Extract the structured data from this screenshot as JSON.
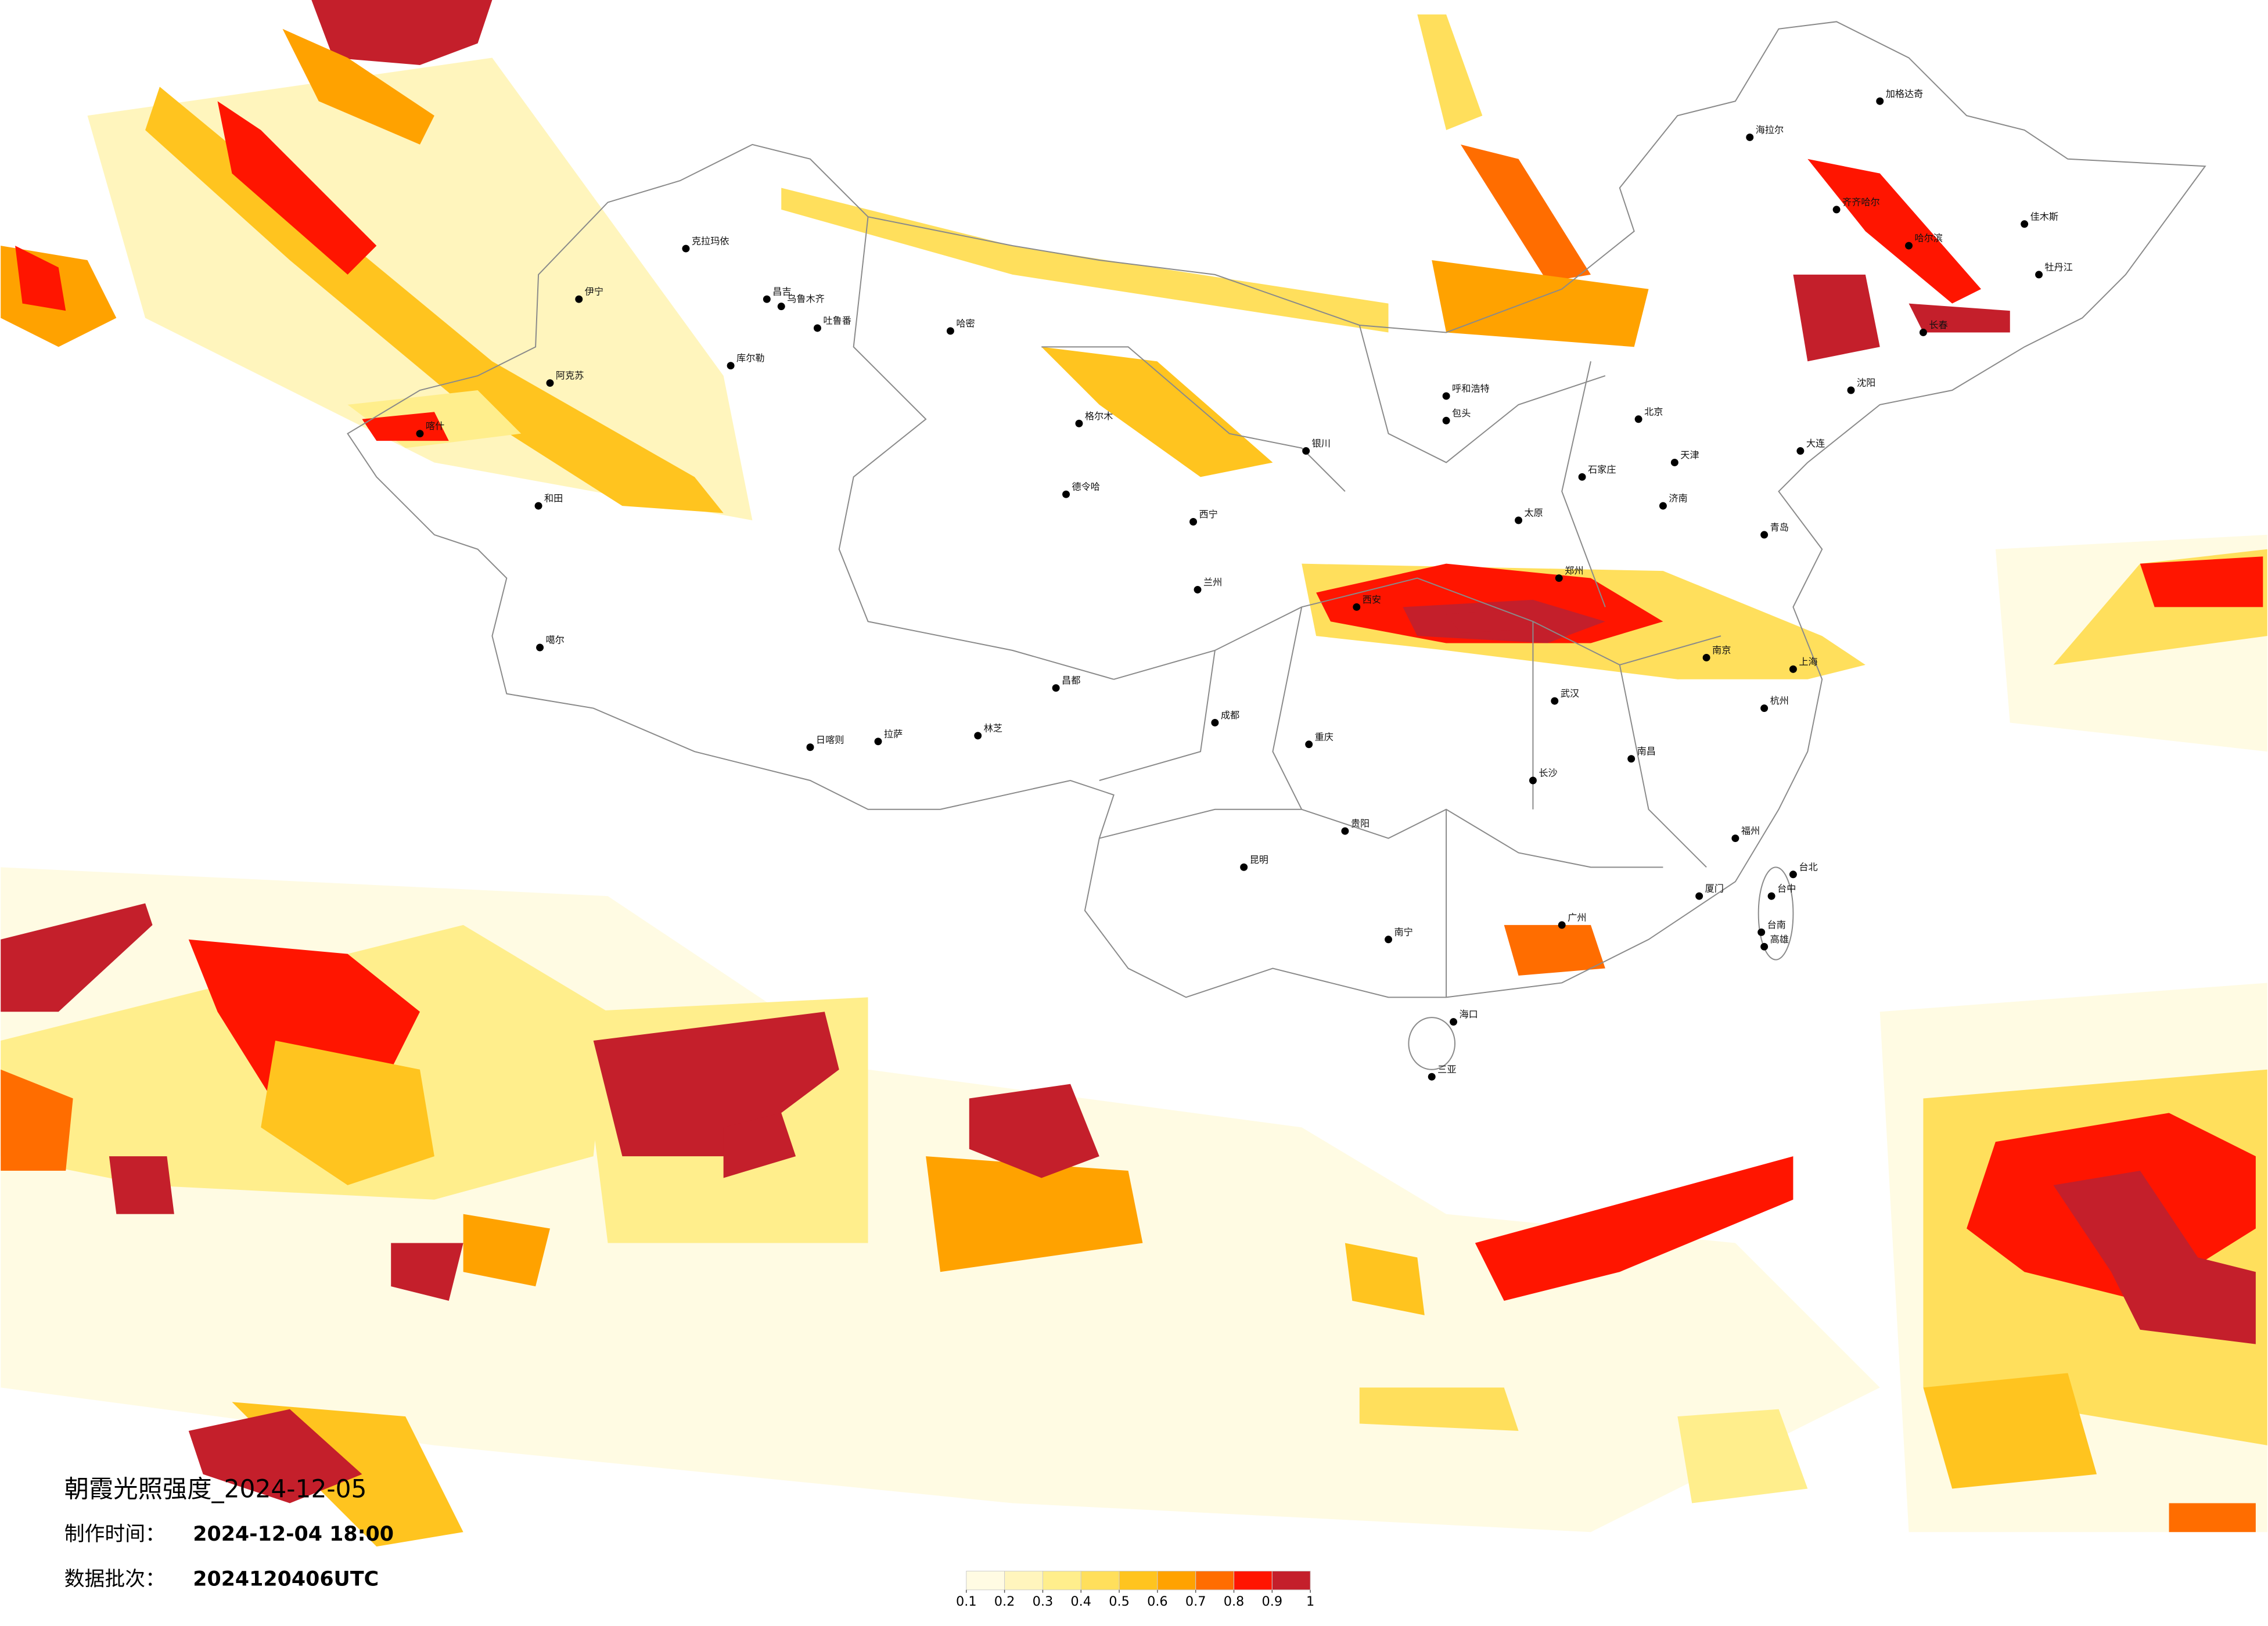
{
  "title": "朝霞光照强度_2024-12-05",
  "made_time_label": "制作时间：",
  "made_time": "2024-12-04 18:00",
  "batch_label": "数据批次：",
  "batch": "2024120406UTC",
  "colorbar": {
    "ticks": [
      0.1,
      0.2,
      0.3,
      0.4,
      0.5,
      0.6,
      0.7,
      0.8,
      0.9,
      1
    ],
    "colors": [
      "#fffbe3",
      "#fff5bd",
      "#ffee8c",
      "#ffdf5c",
      "#ffc41f",
      "#ffa200",
      "#ff6d00",
      "#ff1500",
      "#c41f2b"
    ]
  },
  "cities": [
    "克拉玛依",
    "伊宁",
    "昌吉",
    "乌鲁木齐",
    "吐鲁番",
    "哈密",
    "库尔勒",
    "阿克苏",
    "喀什",
    "和田",
    "噶尔",
    "日喀则",
    "拉萨",
    "林芝",
    "昌都",
    "格尔木",
    "德令哈",
    "西宁",
    "兰州",
    "银川",
    "呼和浩特",
    "包头",
    "北京",
    "天津",
    "石家庄",
    "太原",
    "西安",
    "郑州",
    "济南",
    "南京",
    "上海",
    "杭州",
    "武汉",
    "长沙",
    "南昌",
    "福州",
    "广州",
    "南宁",
    "昆明",
    "贵阳",
    "成都",
    "重庆",
    "海口",
    "三亚",
    "台北",
    "沈阳",
    "长春",
    "哈尔滨",
    "海拉尔",
    "齐齐哈尔",
    "加格达奇",
    "佳木斯",
    "牡丹江",
    "大连",
    "青岛",
    "厦门",
    "台中",
    "台南",
    "高雄"
  ]
}
